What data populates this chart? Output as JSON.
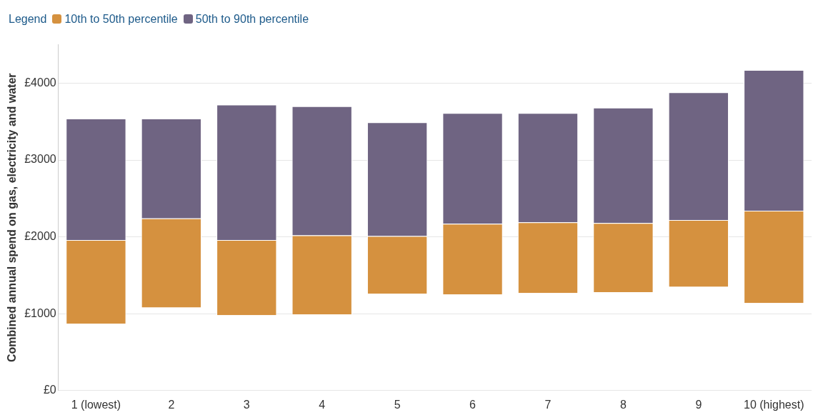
{
  "chart_data": {
    "type": "bar",
    "ylabel": "Combined annual spend on gas, electricity and water",
    "legend_title": "Legend",
    "legend": "top left",
    "grid": "y",
    "categories": [
      "1 (lowest)",
      "2",
      "3",
      "4",
      "5",
      "6",
      "7",
      "8",
      "9",
      "10 (highest)"
    ],
    "series": [
      {
        "name": "10th to 50th percentile",
        "color": "#d5913f",
        "base": [
          870,
          1080,
          980,
          990,
          1260,
          1250,
          1270,
          1280,
          1350,
          1140
        ],
        "values": [
          1090,
          1160,
          980,
          1030,
          750,
          920,
          920,
          900,
          870,
          1200
        ]
      },
      {
        "name": "50th to 90th percentile",
        "color": "#6f6482",
        "base": [
          1960,
          2240,
          1960,
          2020,
          2010,
          2170,
          2190,
          2180,
          2220,
          2340
        ],
        "values": [
          1580,
          1300,
          1760,
          1680,
          1480,
          1440,
          1420,
          1500,
          1660,
          1830
        ]
      }
    ],
    "ylim": [
      0,
      4500
    ],
    "yticks": [
      {
        "value": 0,
        "label": "£0"
      },
      {
        "value": 1000,
        "label": "£1000"
      },
      {
        "value": 2000,
        "label": "£2000"
      },
      {
        "value": 3000,
        "label": "£3000"
      },
      {
        "value": 4000,
        "label": "£4000"
      }
    ]
  }
}
